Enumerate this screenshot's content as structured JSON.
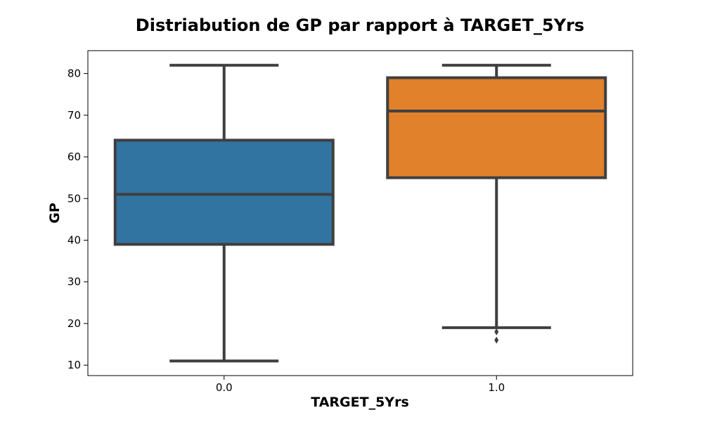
{
  "chart_data": {
    "type": "box",
    "title": "Distriabution de GP par rapport à TARGET_5Yrs",
    "xlabel": "TARGET_5Yrs",
    "ylabel": "GP",
    "categories": [
      "0.0",
      "1.0"
    ],
    "ylim": [
      7.5,
      85.5
    ],
    "yticks": [
      10,
      20,
      30,
      40,
      50,
      60,
      70,
      80
    ],
    "grid": false,
    "boxes": [
      {
        "category": "0.0",
        "whisker_low": 11,
        "q1": 39,
        "median": 51,
        "q3": 64,
        "whisker_high": 82,
        "outliers": [],
        "color": "#3274a1"
      },
      {
        "category": "1.0",
        "whisker_low": 19,
        "q1": 55,
        "median": 71,
        "q3": 79,
        "whisker_high": 82,
        "outliers": [
          18,
          16
        ],
        "color": "#e1812c"
      }
    ],
    "line_color": "#3f3f3f"
  }
}
